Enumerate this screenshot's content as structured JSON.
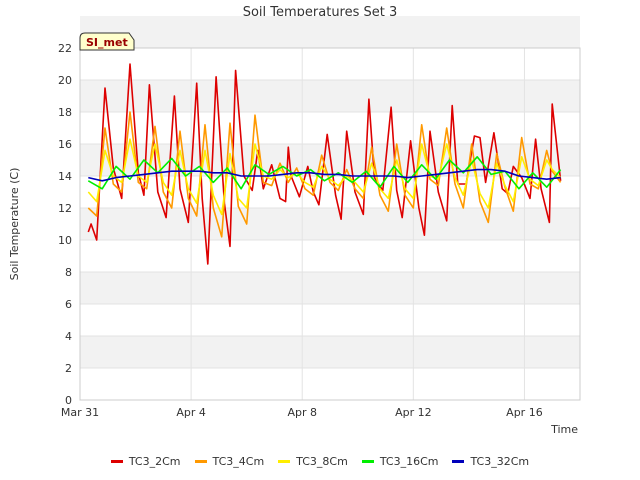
{
  "chart_data": {
    "type": "line",
    "title": "Soil Temperatures Set 3",
    "xlabel": "Time",
    "ylabel": "Soil Temperature (C)",
    "badge": "SI_met",
    "ylim": [
      0,
      22
    ],
    "yticks": [
      0,
      2,
      4,
      6,
      8,
      10,
      12,
      14,
      16,
      18,
      20,
      22
    ],
    "xlim": [
      "2024-03-31",
      "2024-04-18"
    ],
    "xticks": [
      "Mar 31",
      "Apr 4",
      "Apr 8",
      "Apr 12",
      "Apr 16"
    ],
    "xtick_days": [
      0,
      4,
      8,
      12,
      16
    ],
    "grid": "horizontal bands",
    "legend_position": "bottom",
    "series": [
      {
        "name": "TC3_2Cm",
        "color": "#dd0000",
        "days": [
          0.3,
          0.4,
          0.6,
          0.9,
          1.2,
          1.5,
          1.8,
          2.1,
          2.3,
          2.5,
          2.8,
          3.1,
          3.4,
          3.6,
          3.9,
          4.2,
          4.4,
          4.6,
          4.9,
          5.2,
          5.4,
          5.6,
          5.9,
          6.2,
          6.4,
          6.6,
          6.9,
          7.2,
          7.4,
          7.5,
          7.6,
          7.9,
          8.2,
          8.4,
          8.6,
          8.9,
          9.2,
          9.4,
          9.6,
          9.9,
          10.2,
          10.4,
          10.6,
          10.9,
          11.2,
          11.4,
          11.6,
          11.9,
          12.2,
          12.4,
          12.6,
          12.9,
          13.2,
          13.4,
          13.6,
          13.9,
          14.2,
          14.4,
          14.6,
          14.9,
          15.2,
          15.4,
          15.6,
          15.9,
          16.2,
          16.4,
          16.6,
          16.9,
          17.0,
          17.3
        ],
        "values": [
          10.5,
          11.0,
          10.0,
          19.5,
          14.5,
          12.6,
          21.0,
          14.2,
          12.8,
          19.7,
          13.0,
          11.4,
          19.0,
          13.2,
          11.1,
          19.8,
          12.6,
          8.5,
          20.2,
          12.3,
          9.6,
          20.6,
          14.0,
          13.1,
          15.6,
          13.2,
          14.7,
          12.6,
          12.4,
          15.8,
          14.0,
          12.7,
          14.6,
          13.0,
          12.2,
          16.6,
          12.8,
          11.3,
          16.8,
          13.0,
          11.6,
          18.8,
          13.9,
          13.1,
          18.3,
          13.1,
          11.4,
          16.2,
          12.0,
          10.3,
          16.8,
          13.0,
          11.2,
          18.4,
          13.5,
          13.5,
          16.5,
          16.4,
          13.6,
          16.7,
          13.2,
          12.9,
          14.6,
          13.9,
          12.6,
          16.3,
          13.2,
          11.1,
          18.5,
          13.7
        ],
        "note_count": 70
      },
      {
        "name": "TC3_4Cm",
        "color": "#ff9900",
        "days": [
          0.3,
          0.6,
          0.9,
          1.2,
          1.5,
          1.8,
          2.1,
          2.4,
          2.7,
          3.0,
          3.3,
          3.6,
          3.9,
          4.2,
          4.5,
          4.8,
          5.1,
          5.4,
          5.7,
          6.0,
          6.3,
          6.6,
          6.9,
          7.2,
          7.5,
          7.8,
          8.1,
          8.4,
          8.7,
          9.0,
          9.3,
          9.6,
          9.9,
          10.2,
          10.5,
          10.8,
          11.1,
          11.4,
          11.7,
          12.0,
          12.3,
          12.6,
          12.9,
          13.2,
          13.5,
          13.8,
          14.1,
          14.4,
          14.7,
          15.0,
          15.3,
          15.6,
          15.9,
          16.2,
          16.5,
          16.8,
          17.0,
          17.3
        ],
        "values": [
          12.0,
          11.5,
          17.0,
          13.5,
          13.0,
          18.0,
          13.6,
          13.2,
          17.1,
          13.0,
          12.0,
          16.8,
          12.6,
          11.5,
          17.2,
          12.0,
          10.2,
          17.3,
          12.1,
          11.0,
          17.8,
          13.6,
          13.4,
          14.8,
          13.6,
          14.5,
          13.2,
          12.8,
          15.3,
          13.6,
          13.1,
          14.4,
          13.2,
          12.6,
          15.8,
          12.8,
          11.8,
          16.0,
          12.8,
          12.0,
          17.2,
          13.8,
          13.4,
          17.0,
          13.5,
          12.0,
          16.0,
          12.4,
          11.1,
          15.4,
          13.3,
          11.8,
          16.4,
          13.5,
          13.2,
          15.6,
          14.3,
          13.6
        ],
        "note_count": 58
      },
      {
        "name": "TC3_8Cm",
        "color": "#ffee00",
        "days": [
          0.3,
          0.6,
          0.9,
          1.2,
          1.5,
          1.8,
          2.1,
          2.4,
          2.7,
          3.0,
          3.3,
          3.6,
          3.9,
          4.2,
          4.5,
          4.8,
          5.1,
          5.4,
          5.7,
          6.0,
          6.3,
          6.6,
          6.9,
          7.2,
          7.5,
          7.8,
          8.1,
          8.4,
          8.7,
          9.0,
          9.3,
          9.6,
          9.9,
          10.2,
          10.5,
          10.8,
          11.1,
          11.4,
          11.7,
          12.0,
          12.3,
          12.6,
          12.9,
          13.2,
          13.5,
          13.8,
          14.1,
          14.4,
          14.7,
          15.0,
          15.3,
          15.6,
          15.9,
          16.2,
          16.5,
          16.8,
          17.0,
          17.3
        ],
        "values": [
          13.0,
          12.4,
          15.6,
          14.0,
          13.6,
          16.3,
          14.0,
          13.6,
          16.0,
          13.6,
          12.8,
          15.6,
          13.2,
          12.3,
          15.6,
          12.8,
          11.6,
          15.4,
          12.6,
          12.0,
          16.0,
          14.0,
          13.8,
          14.4,
          13.9,
          14.2,
          13.6,
          13.3,
          14.6,
          13.8,
          13.4,
          14.0,
          13.6,
          13.0,
          14.8,
          13.2,
          12.6,
          15.0,
          13.2,
          12.6,
          16.0,
          14.0,
          13.8,
          16.0,
          13.9,
          12.8,
          15.0,
          12.9,
          12.0,
          14.8,
          13.4,
          12.4,
          15.2,
          13.8,
          13.4,
          15.0,
          14.4,
          13.9
        ],
        "note_count": 58
      },
      {
        "name": "TC3_16Cm",
        "color": "#00ee00",
        "days": [
          0.3,
          0.8,
          1.3,
          1.8,
          2.3,
          2.8,
          3.3,
          3.8,
          4.3,
          4.8,
          5.3,
          5.8,
          6.3,
          6.8,
          7.3,
          7.8,
          8.3,
          8.8,
          9.3,
          9.8,
          10.3,
          10.8,
          11.3,
          11.8,
          12.3,
          12.8,
          13.3,
          13.8,
          14.3,
          14.8,
          15.3,
          15.8,
          16.3,
          16.8,
          17.3
        ],
        "values": [
          13.7,
          13.2,
          14.6,
          13.8,
          15.0,
          14.2,
          15.1,
          14.0,
          14.6,
          13.6,
          14.5,
          13.2,
          14.7,
          14.1,
          14.6,
          14.0,
          14.4,
          13.7,
          14.2,
          13.6,
          14.3,
          13.3,
          14.6,
          13.6,
          14.7,
          13.8,
          15.0,
          14.2,
          15.2,
          14.1,
          14.3,
          13.2,
          14.2,
          13.3,
          14.4
        ],
        "note_count": 35
      },
      {
        "name": "TC3_32Cm",
        "color": "#0000bb",
        "days": [
          0.3,
          0.8,
          1.3,
          1.8,
          2.3,
          2.8,
          3.3,
          3.8,
          4.3,
          4.8,
          5.3,
          5.8,
          6.3,
          6.8,
          7.3,
          7.8,
          8.3,
          8.8,
          9.3,
          9.8,
          10.3,
          10.8,
          11.3,
          11.8,
          12.3,
          12.8,
          13.3,
          13.8,
          14.3,
          14.8,
          15.3,
          15.8,
          16.3,
          16.8,
          17.3
        ],
        "values": [
          13.9,
          13.7,
          13.9,
          14.0,
          14.1,
          14.2,
          14.3,
          14.3,
          14.3,
          14.2,
          14.2,
          14.0,
          14.0,
          14.0,
          14.1,
          14.2,
          14.2,
          14.1,
          14.1,
          14.0,
          14.0,
          14.0,
          14.0,
          13.9,
          14.0,
          14.1,
          14.2,
          14.3,
          14.4,
          14.4,
          14.3,
          14.0,
          13.9,
          13.8,
          13.9
        ],
        "note_count": 35
      }
    ]
  }
}
